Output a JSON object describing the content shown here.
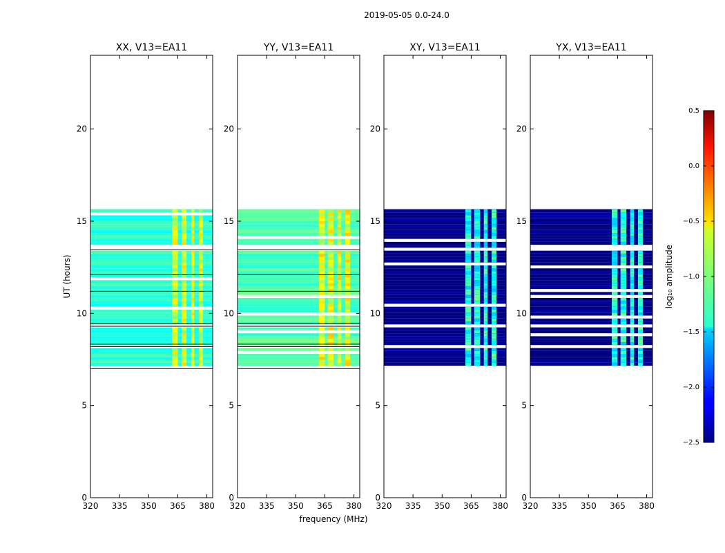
{
  "chart_data": {
    "type": "heatmap",
    "suptitle": "2019-05-05 0.0-24.0",
    "ylabel": "UT (hours)",
    "xlabel": "frequency (MHz)",
    "xlim": [
      320,
      383
    ],
    "ylim": [
      0,
      24
    ],
    "xticks": [
      320,
      335,
      350,
      365,
      380
    ],
    "yticks": [
      0,
      5,
      10,
      15,
      20
    ],
    "data_time_range": [
      7.0,
      15.65
    ],
    "blank_time_gaps": [
      [
        13.45,
        13.6
      ],
      [
        9.3,
        9.45
      ],
      [
        8.2,
        8.33
      ],
      [
        7.05,
        7.12
      ]
    ],
    "panels": [
      {
        "title": "XX, V13=EA11",
        "base_log_amp": -1.25,
        "strong_channels_mhz": [
          [
            362,
            365
          ],
          [
            367,
            369.5
          ],
          [
            372,
            373.5
          ],
          [
            376,
            378
          ]
        ],
        "strong_log_amp": -0.75
      },
      {
        "title": "YY, V13=EA11",
        "base_log_amp": -1.15,
        "strong_channels_mhz": [
          [
            362,
            365
          ],
          [
            366.5,
            369.5
          ],
          [
            371.5,
            373.5
          ],
          [
            375.5,
            378
          ]
        ],
        "strong_log_amp": -0.7
      },
      {
        "title": "XY, V13=EA11",
        "base_log_amp": -2.5,
        "strong_channels_mhz": [
          [
            362,
            365
          ],
          [
            366.5,
            369.5
          ],
          [
            371.5,
            373.5
          ],
          [
            375.5,
            378
          ]
        ],
        "strong_log_amp": -1.3
      },
      {
        "title": "YX, V13=EA11",
        "base_log_amp": -2.5,
        "strong_channels_mhz": [
          [
            362,
            365
          ],
          [
            366.5,
            369.5
          ],
          [
            371.5,
            373.5
          ],
          [
            375.5,
            378
          ]
        ],
        "strong_log_amp": -1.3
      }
    ],
    "colorbar": {
      "label": "log₁₀ amplitude",
      "range": [
        -2.5,
        0.5
      ],
      "ticks": [
        "0.5",
        "0.0",
        "−0.5",
        "−1.0",
        "−1.5",
        "−2.0",
        "−2.5"
      ],
      "tick_values": [
        0.5,
        0.0,
        -0.5,
        -1.0,
        -1.5,
        -2.0,
        -2.5
      ],
      "colormap": "jet"
    }
  }
}
